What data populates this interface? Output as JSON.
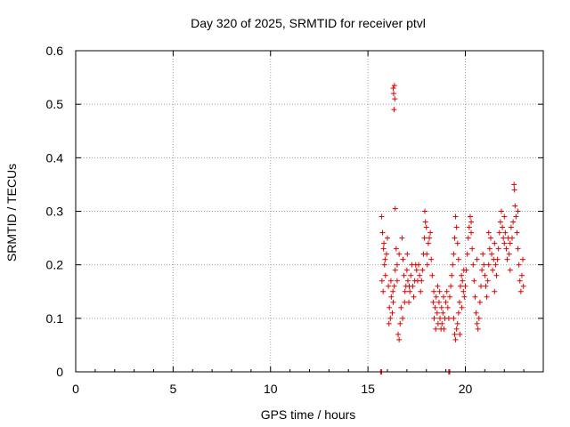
{
  "chart_data": {
    "type": "scatter",
    "title": "Day 320 of 2025, SRMTID for receiver ptvl",
    "xlabel": "GPS time / hours",
    "ylabel": "SRMTID / TECUs",
    "xlim": [
      0,
      24
    ],
    "ylim": [
      0,
      0.6
    ],
    "xticks": [
      0,
      5,
      10,
      15,
      20
    ],
    "yticks": [
      0,
      0.1,
      0.2,
      0.3,
      0.4,
      0.5,
      0.6
    ],
    "xtick_labels": [
      "0",
      "5",
      "10",
      "15",
      "20"
    ],
    "ytick_labels": [
      "0",
      "0.1",
      "0.2",
      "0.3",
      "0.4",
      "0.5",
      "0.6"
    ],
    "grid": true,
    "marker": "plus",
    "series_color": "#e60000",
    "series": [
      {
        "name": "SRMTID",
        "points": [
          [
            15.65,
            0.0
          ],
          [
            15.7,
            0.0
          ],
          [
            19.15,
            0.0
          ],
          [
            19.2,
            0.0
          ],
          [
            15.7,
            0.29
          ],
          [
            15.75,
            0.26
          ],
          [
            15.8,
            0.23
          ],
          [
            15.85,
            0.2
          ],
          [
            15.9,
            0.18
          ],
          [
            15.95,
            0.22
          ],
          [
            16.0,
            0.25
          ],
          [
            15.72,
            0.17
          ],
          [
            15.78,
            0.15
          ],
          [
            15.82,
            0.24
          ],
          [
            15.88,
            0.21
          ],
          [
            16.05,
            0.16
          ],
          [
            16.1,
            0.12
          ],
          [
            16.15,
            0.1
          ],
          [
            16.2,
            0.14
          ],
          [
            16.25,
            0.11
          ],
          [
            16.3,
            0.13
          ],
          [
            16.35,
            0.16
          ],
          [
            16.4,
            0.19
          ],
          [
            16.08,
            0.09
          ],
          [
            16.18,
            0.17
          ],
          [
            16.28,
            0.15
          ],
          [
            16.3,
            0.53
          ],
          [
            16.32,
            0.52
          ],
          [
            16.34,
            0.49
          ],
          [
            16.36,
            0.535
          ],
          [
            16.38,
            0.51
          ],
          [
            16.4,
            0.305
          ],
          [
            16.45,
            0.23
          ],
          [
            16.5,
            0.2
          ],
          [
            16.55,
            0.07
          ],
          [
            16.6,
            0.06
          ],
          [
            16.65,
            0.09
          ],
          [
            16.7,
            0.12
          ],
          [
            16.5,
            0.17
          ],
          [
            16.6,
            0.22
          ],
          [
            16.75,
            0.25
          ],
          [
            16.8,
            0.21
          ],
          [
            16.85,
            0.18
          ],
          [
            16.9,
            0.15
          ],
          [
            16.95,
            0.16
          ],
          [
            17.0,
            0.19
          ],
          [
            17.05,
            0.17
          ],
          [
            17.1,
            0.13
          ],
          [
            17.15,
            0.15
          ],
          [
            17.2,
            0.18
          ],
          [
            17.25,
            0.2
          ],
          [
            17.3,
            0.16
          ],
          [
            16.78,
            0.1
          ],
          [
            16.88,
            0.13
          ],
          [
            17.02,
            0.22
          ],
          [
            17.12,
            0.16
          ],
          [
            17.35,
            0.14
          ],
          [
            17.4,
            0.17
          ],
          [
            17.45,
            0.2
          ],
          [
            17.5,
            0.19
          ],
          [
            17.55,
            0.17
          ],
          [
            17.6,
            0.2
          ],
          [
            17.65,
            0.18
          ],
          [
            17.7,
            0.15
          ],
          [
            17.75,
            0.17
          ],
          [
            17.8,
            0.19
          ],
          [
            17.85,
            0.22
          ],
          [
            17.9,
            0.25
          ],
          [
            17.95,
            0.28
          ],
          [
            18.0,
            0.27
          ],
          [
            17.92,
            0.3
          ],
          [
            18.02,
            0.22
          ],
          [
            18.05,
            0.2
          ],
          [
            18.1,
            0.24
          ],
          [
            18.15,
            0.25
          ],
          [
            18.2,
            0.26
          ],
          [
            18.25,
            0.21
          ],
          [
            18.3,
            0.18
          ],
          [
            18.35,
            0.13
          ],
          [
            18.4,
            0.1
          ],
          [
            18.45,
            0.12
          ],
          [
            18.5,
            0.14
          ],
          [
            18.55,
            0.11
          ],
          [
            18.6,
            0.09
          ],
          [
            18.65,
            0.13
          ],
          [
            18.7,
            0.1
          ],
          [
            18.75,
            0.08
          ],
          [
            18.8,
            0.09
          ],
          [
            18.85,
            0.11
          ],
          [
            18.9,
            0.08
          ],
          [
            18.95,
            0.1
          ],
          [
            18.38,
            0.15
          ],
          [
            18.48,
            0.08
          ],
          [
            18.58,
            0.16
          ],
          [
            18.68,
            0.15
          ],
          [
            18.78,
            0.12
          ],
          [
            18.88,
            0.14
          ],
          [
            19.0,
            0.13
          ],
          [
            19.05,
            0.15
          ],
          [
            19.1,
            0.12
          ],
          [
            19.15,
            0.1
          ],
          [
            19.2,
            0.14
          ],
          [
            19.25,
            0.16
          ],
          [
            19.3,
            0.18
          ],
          [
            19.35,
            0.2
          ],
          [
            19.4,
            0.22
          ],
          [
            19.45,
            0.25
          ],
          [
            19.5,
            0.29
          ],
          [
            19.55,
            0.27
          ],
          [
            19.6,
            0.24
          ],
          [
            19.65,
            0.21
          ],
          [
            19.4,
            0.1
          ],
          [
            19.45,
            0.07
          ],
          [
            19.5,
            0.06
          ],
          [
            19.55,
            0.08
          ],
          [
            19.6,
            0.09
          ],
          [
            19.65,
            0.11
          ],
          [
            19.7,
            0.13
          ],
          [
            19.75,
            0.16
          ],
          [
            19.8,
            0.18
          ],
          [
            19.85,
            0.17
          ],
          [
            19.9,
            0.15
          ],
          [
            19.95,
            0.14
          ],
          [
            20.0,
            0.16
          ],
          [
            20.05,
            0.19
          ],
          [
            19.72,
            0.07
          ],
          [
            19.82,
            0.12
          ],
          [
            19.92,
            0.19
          ],
          [
            20.1,
            0.22
          ],
          [
            20.15,
            0.25
          ],
          [
            20.2,
            0.27
          ],
          [
            20.25,
            0.29
          ],
          [
            20.3,
            0.26
          ],
          [
            20.35,
            0.23
          ],
          [
            20.4,
            0.2
          ],
          [
            20.45,
            0.17
          ],
          [
            20.5,
            0.14
          ],
          [
            20.55,
            0.11
          ],
          [
            20.6,
            0.09
          ],
          [
            20.65,
            0.08
          ],
          [
            20.7,
            0.1
          ],
          [
            20.75,
            0.13
          ],
          [
            20.8,
            0.16
          ],
          [
            20.85,
            0.19
          ],
          [
            20.9,
            0.22
          ],
          [
            20.95,
            0.2
          ],
          [
            21.0,
            0.18
          ],
          [
            21.05,
            0.16
          ],
          [
            21.1,
            0.14
          ],
          [
            21.15,
            0.17
          ],
          [
            21.2,
            0.2
          ],
          [
            21.25,
            0.23
          ],
          [
            21.3,
            0.25
          ],
          [
            21.35,
            0.22
          ],
          [
            21.4,
            0.19
          ],
          [
            21.45,
            0.21
          ],
          [
            21.5,
            0.24
          ],
          [
            21.55,
            0.2
          ],
          [
            21.6,
            0.18
          ],
          [
            21.65,
            0.21
          ],
          [
            21.7,
            0.23
          ],
          [
            21.75,
            0.26
          ],
          [
            21.8,
            0.28
          ],
          [
            21.85,
            0.3
          ],
          [
            21.9,
            0.27
          ],
          [
            21.95,
            0.25
          ],
          [
            22.0,
            0.24
          ],
          [
            22.05,
            0.26
          ],
          [
            22.1,
            0.23
          ],
          [
            22.15,
            0.21
          ],
          [
            22.2,
            0.25
          ],
          [
            22.25,
            0.22
          ],
          [
            22.3,
            0.24
          ],
          [
            22.35,
            0.27
          ],
          [
            22.4,
            0.25
          ],
          [
            22.45,
            0.28
          ],
          [
            22.5,
            0.35
          ],
          [
            22.52,
            0.34
          ],
          [
            22.55,
            0.31
          ],
          [
            22.6,
            0.29
          ],
          [
            22.65,
            0.26
          ],
          [
            22.7,
            0.23
          ],
          [
            22.75,
            0.2
          ],
          [
            22.8,
            0.17
          ],
          [
            22.85,
            0.15
          ],
          [
            22.9,
            0.18
          ],
          [
            22.95,
            0.21
          ],
          [
            22.98,
            0.16
          ],
          [
            20.3,
            0.28
          ],
          [
            20.6,
            0.21
          ],
          [
            21.2,
            0.26
          ],
          [
            21.5,
            0.15
          ],
          [
            22.0,
            0.29
          ],
          [
            22.3,
            0.19
          ],
          [
            22.7,
            0.3
          ]
        ]
      }
    ]
  }
}
